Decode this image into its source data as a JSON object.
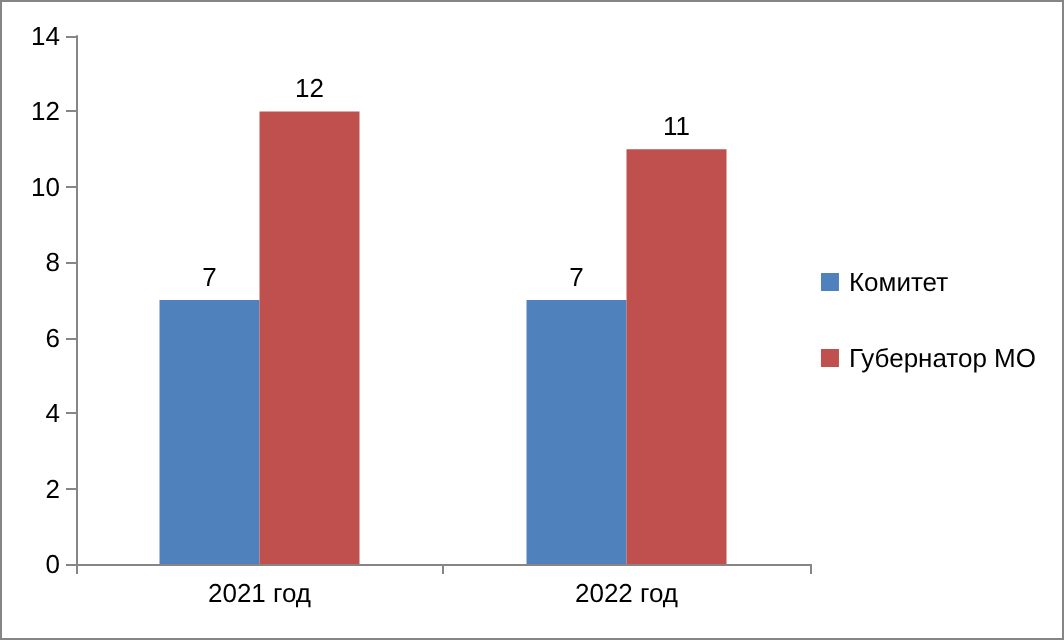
{
  "chart_data": {
    "type": "bar",
    "categories": [
      "2021 год",
      "2022 год"
    ],
    "series": [
      {
        "name": "Комитет",
        "color": "#4f81bd",
        "values": [
          7,
          7
        ]
      },
      {
        "name": "Губернатор МО",
        "color": "#c0504d",
        "values": [
          12,
          11
        ]
      }
    ],
    "ylim": [
      0,
      14
    ],
    "yticks": [
      0,
      2,
      4,
      6,
      8,
      10,
      12,
      14
    ],
    "grid": false,
    "legend": "right",
    "data_labels": true
  }
}
